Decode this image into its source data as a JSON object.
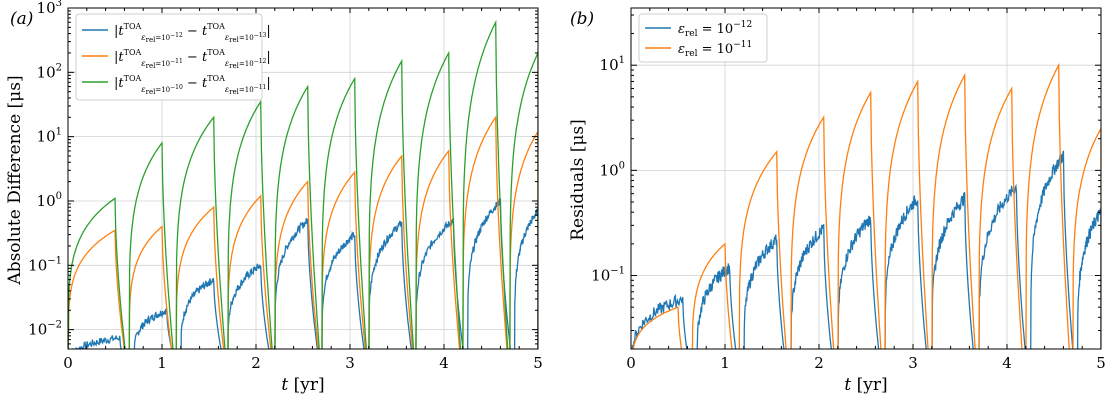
{
  "colors": {
    "blue": "#1f77b4",
    "orange": "#ff7f0e",
    "green": "#2ca02c"
  },
  "chart_data": [
    {
      "type": "line",
      "panel_label": "(a)",
      "ylabel": "Absolute Difference [μs]",
      "xlabel": "t [yr]",
      "xlim": [
        0,
        5
      ],
      "ylim": [
        0.005,
        1000
      ],
      "yscale": "log",
      "grid": true,
      "legend_position": "top-left",
      "x_ticks": [
        "0",
        "1",
        "2",
        "3",
        "4",
        "5"
      ],
      "y_ticks": [
        {
          "value": 0.01,
          "base": "10",
          "exp": "−2"
        },
        {
          "value": 0.1,
          "base": "10",
          "exp": "−1"
        },
        {
          "value": 1,
          "base": "10",
          "exp": "0"
        },
        {
          "value": 10,
          "base": "10",
          "exp": "1"
        },
        {
          "value": 100,
          "base": "10",
          "exp": "2"
        },
        {
          "value": 1000,
          "base": "10",
          "exp": "3"
        }
      ],
      "series": [
        {
          "name": "|t^TOA(ε_rel=10^−12) − t^TOA(ε_rel=10^−13)|",
          "name_a": "10",
          "name_a_exp": "−12",
          "name_b": "10",
          "name_b_exp": "−13",
          "color": "blue",
          "peaks": [
            [
              0.55,
              0.0075
            ],
            [
              1.05,
              0.02
            ],
            [
              1.55,
              0.06
            ],
            [
              2.05,
              0.1
            ],
            [
              2.55,
              0.5
            ],
            [
              3.05,
              0.3
            ],
            [
              3.55,
              0.45
            ],
            [
              4.1,
              0.5
            ],
            [
              4.6,
              1.0
            ],
            [
              5.0,
              0.7
            ]
          ]
        },
        {
          "name": "|t^TOA(ε_rel=10^−11) − t^TOA(ε_rel=10^−12)|",
          "name_a": "10",
          "name_a_exp": "−11",
          "name_b": "10",
          "name_b_exp": "−12",
          "color": "orange",
          "peaks": [
            [
              0.5,
              0.35
            ],
            [
              1.0,
              0.4
            ],
            [
              1.55,
              0.8
            ],
            [
              2.05,
              1.2
            ],
            [
              2.55,
              2.0
            ],
            [
              3.05,
              2.8
            ],
            [
              3.55,
              5.0
            ],
            [
              4.05,
              6.0
            ],
            [
              4.55,
              20.0
            ],
            [
              5.0,
              12.0
            ]
          ]
        },
        {
          "name": "|t^TOA(ε_rel=10^−10) − t^TOA(ε_rel=10^−11)|",
          "name_a": "10",
          "name_a_exp": "−10",
          "name_b": "10",
          "name_b_exp": "−11",
          "color": "green",
          "peaks": [
            [
              0.5,
              1.1
            ],
            [
              1.0,
              8.0
            ],
            [
              1.55,
              20.0
            ],
            [
              2.05,
              35.0
            ],
            [
              2.55,
              60.0
            ],
            [
              3.05,
              80.0
            ],
            [
              3.55,
              150.0
            ],
            [
              4.05,
              200.0
            ],
            [
              4.55,
              600.0
            ],
            [
              5.0,
              200.0
            ]
          ]
        }
      ]
    },
    {
      "type": "line",
      "panel_label": "(b)",
      "ylabel": "Residuals [μs]",
      "xlabel": "t [yr]",
      "xlim": [
        0,
        5
      ],
      "ylim": [
        0.02,
        35
      ],
      "yscale": "log",
      "grid": true,
      "legend_position": "top-left",
      "x_ticks": [
        "0",
        "1",
        "2",
        "3",
        "4",
        "5"
      ],
      "y_ticks": [
        {
          "value": 0.1,
          "base": "10",
          "exp": "−1"
        },
        {
          "value": 1,
          "base": "10",
          "exp": "0"
        },
        {
          "value": 10,
          "base": "10",
          "exp": "1"
        }
      ],
      "series": [
        {
          "name": "ε_rel = 10^−12",
          "name_base": "10",
          "name_exp": "−12",
          "color": "blue",
          "peaks": [
            [
              0.55,
              0.06
            ],
            [
              1.05,
              0.12
            ],
            [
              1.55,
              0.22
            ],
            [
              2.05,
              0.28
            ],
            [
              2.55,
              0.35
            ],
            [
              3.05,
              0.55
            ],
            [
              3.55,
              0.55
            ],
            [
              4.1,
              0.7
            ],
            [
              4.6,
              1.4
            ],
            [
              5.0,
              0.4
            ]
          ]
        },
        {
          "name": "ε_rel = 10^−11",
          "name_base": "10",
          "name_exp": "−11",
          "color": "orange",
          "peaks": [
            [
              0.5,
              0.05
            ],
            [
              1.0,
              0.2
            ],
            [
              1.55,
              1.5
            ],
            [
              2.05,
              3.2
            ],
            [
              2.55,
              5.5
            ],
            [
              3.05,
              7.0
            ],
            [
              3.55,
              8.0
            ],
            [
              4.05,
              6.0
            ],
            [
              4.55,
              10.0
            ],
            [
              5.0,
              2.5
            ]
          ]
        }
      ]
    }
  ]
}
